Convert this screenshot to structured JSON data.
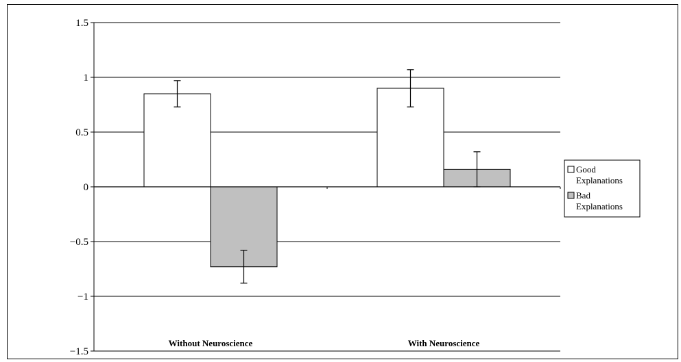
{
  "chart_data": {
    "type": "bar",
    "title": "",
    "xlabel": "",
    "ylabel": "",
    "categories": [
      "Without Neuroscience",
      "With Neuroscience"
    ],
    "series": [
      {
        "name": "Good Explanations",
        "color": "#ffffff",
        "values": [
          0.85,
          0.9
        ],
        "error": [
          0.12,
          0.17
        ]
      },
      {
        "name": "Bad Explanations",
        "color": "#c0c0c0",
        "values": [
          -0.73,
          0.16
        ],
        "error": [
          0.15,
          0.16
        ]
      }
    ],
    "ylim": [
      -1.5,
      1.5
    ],
    "yticks": [
      "1.5",
      "1",
      "0.5",
      "0",
      "−0.5",
      "−1",
      "−1.5"
    ],
    "ytick_values": [
      1.5,
      1,
      0.5,
      0,
      -0.5,
      -1,
      -1.5
    ],
    "grid": true,
    "legend": "right"
  }
}
